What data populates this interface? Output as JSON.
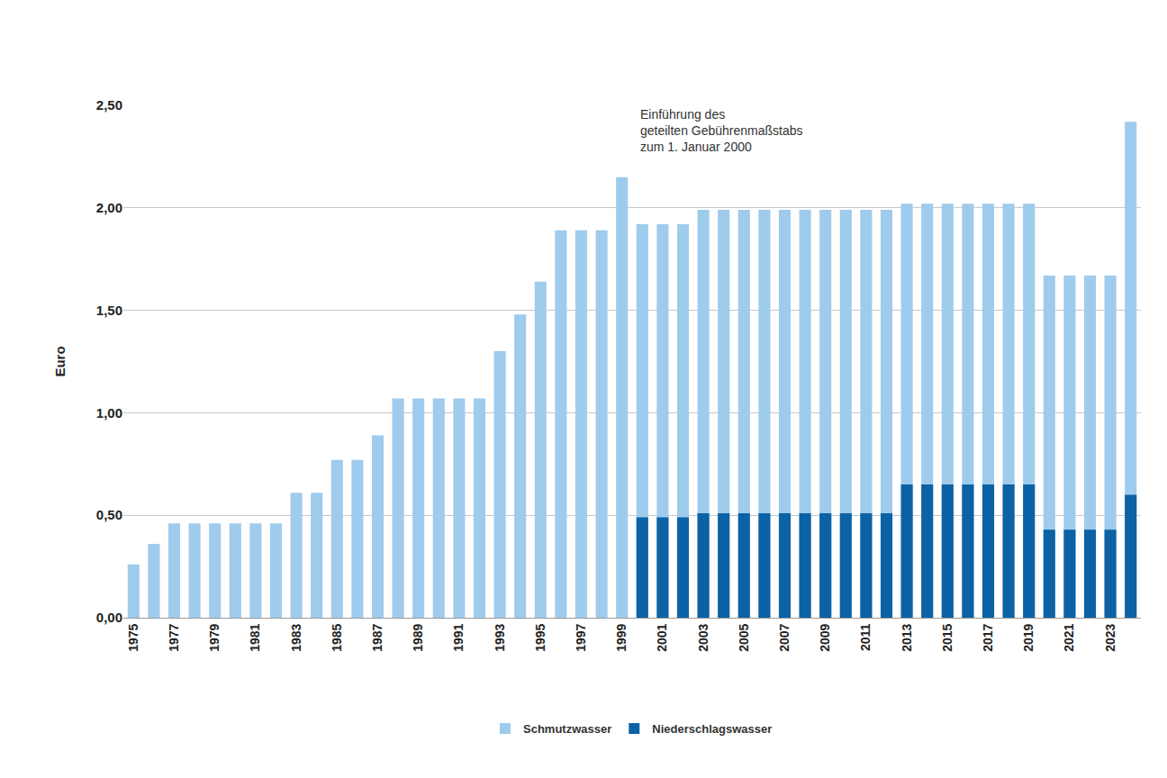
{
  "chart_data": {
    "type": "bar",
    "y_label": "Euro",
    "annotations": [
      {
        "text": [
          "Einführung des",
          "geteilten Gebührenmaßstabs",
          "zum 1. Januar 2000"
        ]
      }
    ],
    "categories": [
      "1975",
      null,
      "1977",
      null,
      "1979",
      null,
      "1981",
      null,
      "1983",
      null,
      "1985",
      null,
      "1987",
      null,
      "1989",
      null,
      "1991",
      null,
      "1993",
      null,
      "1995",
      null,
      "1997",
      null,
      "1999",
      null,
      "2001",
      null,
      "2003",
      null,
      "2005",
      null,
      "2007",
      null,
      "2009",
      null,
      "2011",
      null,
      "2013",
      null,
      "2015",
      null,
      "2017",
      null,
      "2019",
      null,
      "2021",
      null,
      "2023",
      null
    ],
    "series": [
      {
        "name": "Schmutzwasser",
        "color": "#9fcbed",
        "values": [
          0.26,
          0.36,
          0.46,
          0.46,
          0.46,
          0.46,
          0.46,
          0.46,
          0.61,
          0.61,
          0.77,
          0.77,
          0.89,
          1.07,
          1.07,
          1.07,
          1.07,
          1.07,
          1.3,
          1.48,
          1.64,
          1.89,
          1.89,
          1.89,
          2.15,
          1.92,
          1.92,
          1.92,
          1.99,
          1.99,
          1.99,
          1.99,
          1.99,
          1.99,
          1.99,
          1.99,
          1.99,
          1.99,
          2.02,
          2.02,
          2.02,
          2.02,
          2.02,
          2.02,
          2.02,
          1.67,
          1.67,
          1.67,
          1.67,
          2.42
        ]
      },
      {
        "name": "Niederschlagswasser",
        "color": "#0b62a4",
        "values": [
          null,
          null,
          null,
          null,
          null,
          null,
          null,
          null,
          null,
          null,
          null,
          null,
          null,
          null,
          null,
          null,
          null,
          null,
          null,
          null,
          null,
          null,
          null,
          null,
          null,
          0.49,
          0.49,
          0.49,
          0.51,
          0.51,
          0.51,
          0.51,
          0.51,
          0.51,
          0.51,
          0.51,
          0.51,
          0.51,
          0.65,
          0.65,
          0.65,
          0.65,
          0.65,
          0.65,
          0.65,
          0.43,
          0.43,
          0.43,
          0.43,
          0.6
        ]
      }
    ],
    "stacked": false,
    "ylim": [
      0,
      2.5
    ],
    "yticks": [
      {
        "value": 0,
        "label": "0,00"
      },
      {
        "value": 0.5,
        "label": "0,50"
      },
      {
        "value": 1,
        "label": "1,00"
      },
      {
        "value": 1.5,
        "label": "1,50"
      },
      {
        "value": 2,
        "label": "2,00"
      },
      {
        "value": 2.5,
        "label": "2,50"
      }
    ],
    "grid": true,
    "legend": "bottom"
  }
}
